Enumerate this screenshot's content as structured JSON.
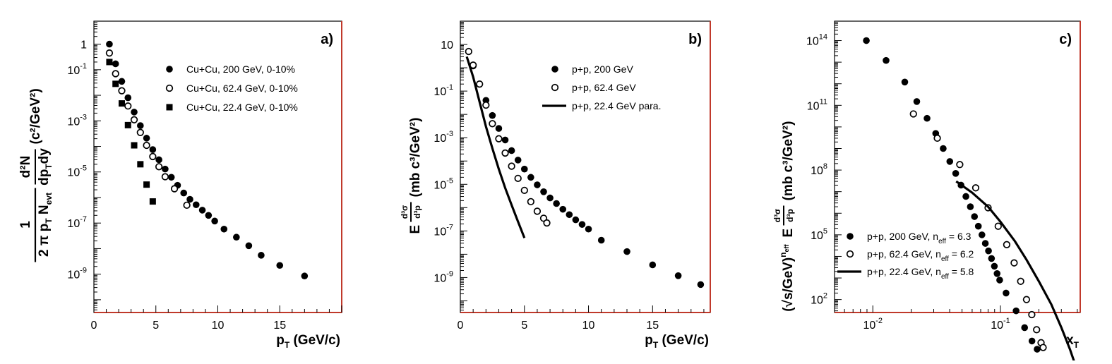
{
  "chart_data": [
    {
      "type": "scatter",
      "panel_label": "a)",
      "xlabel": "p",
      "xlabel_sub": "T",
      "xlabel_unit": " (GeV/c)",
      "ylabel_frac_num": "1",
      "ylabel_frac_den": "2 π p",
      "ylabel_frac_den_sub": "T",
      "ylabel_frac_den2": " N",
      "ylabel_frac_den2_sub": "evt",
      "ylabel_d2n": "d²N",
      "ylabel_den": "dp",
      "ylabel_den_sub": "T",
      "ylabel_den2": "dy",
      "ylabel_unit": "(c²/GeV²)",
      "x_scale": "linear",
      "y_scale": "log",
      "xlim": [
        0,
        20
      ],
      "ylim_exp": [
        -10.5,
        0.9
      ],
      "x_ticks": [
        {
          "v": 0,
          "t": "0"
        },
        {
          "v": 5,
          "t": "5"
        },
        {
          "v": 10,
          "t": "10"
        },
        {
          "v": 15,
          "t": "15"
        }
      ],
      "y_ticks": [
        {
          "v": 0,
          "t": "1"
        },
        {
          "v": -1,
          "t": "10",
          "e": "-1"
        },
        {
          "v": -3,
          "t": "10",
          "e": "-3"
        },
        {
          "v": -5,
          "t": "10",
          "e": "-5"
        },
        {
          "v": -7,
          "t": "10",
          "e": "-7"
        },
        {
          "v": -9,
          "t": "10",
          "e": "-9"
        }
      ],
      "legend_position": "top-right",
      "series": [
        {
          "name": "Cu+Cu, 200 GeV,  0-10%",
          "marker": "filled-circle",
          "x": [
            1.25,
            1.75,
            2.25,
            2.75,
            3.25,
            3.75,
            4.25,
            4.75,
            5.25,
            5.75,
            6.25,
            6.75,
            7.25,
            7.75,
            8.25,
            8.75,
            9.25,
            9.75,
            10.5,
            11.5,
            12.5,
            13.5,
            15,
            17
          ],
          "y": [
            1.0,
            0.17,
            0.035,
            0.008,
            0.0022,
            0.00065,
            0.00021,
            7.5e-05,
            3e-05,
            1.3e-05,
            6.2e-06,
            3e-06,
            1.5e-06,
            8.5e-07,
            5.2e-07,
            3.2e-07,
            2e-07,
            1.2e-07,
            5.8e-08,
            2.8e-08,
            1.3e-08,
            5.5e-09,
            2.2e-09,
            8.5e-10
          ]
        },
        {
          "name": "Cu+Cu, 62.4 GeV,  0-10%",
          "marker": "open-circle",
          "x": [
            1.25,
            1.75,
            2.25,
            2.75,
            3.25,
            3.75,
            4.25,
            4.75,
            5.25,
            5.75,
            6.5,
            7.5
          ],
          "y": [
            0.45,
            0.07,
            0.015,
            0.0038,
            0.0011,
            0.00035,
            0.00011,
            4e-05,
            1.6e-05,
            6.5e-06,
            2.2e-06,
            5e-07
          ]
        },
        {
          "name": "Cu+Cu, 22.4 GeV,  0-10%",
          "marker": "filled-square",
          "x": [
            1.25,
            1.75,
            2.25,
            2.75,
            3.25,
            3.75,
            4.25,
            4.75
          ],
          "y": [
            0.2,
            0.028,
            0.0048,
            0.00068,
            0.00011,
            2e-05,
            3.2e-06,
            7e-07
          ]
        }
      ]
    },
    {
      "type": "scatter",
      "panel_label": "b)",
      "xlabel": "p",
      "xlabel_sub": "T",
      "xlabel_unit": " (GeV/c)",
      "ylabel_e": "E",
      "ylabel_num": "d³σ",
      "ylabel_den": "d³p",
      "ylabel_unit": "(mb c³/GeV²)",
      "x_scale": "linear",
      "y_scale": "log",
      "xlim": [
        0,
        19.5
      ],
      "ylim_exp": [
        -10.5,
        2
      ],
      "x_ticks": [
        {
          "v": 0,
          "t": "0"
        },
        {
          "v": 5,
          "t": "5"
        },
        {
          "v": 10,
          "t": "10"
        },
        {
          "v": 15,
          "t": "15"
        }
      ],
      "y_ticks": [
        {
          "v": 1,
          "t": "10"
        },
        {
          "v": -1,
          "t": "10",
          "e": "-1"
        },
        {
          "v": -3,
          "t": "10",
          "e": "-3"
        },
        {
          "v": -5,
          "t": "10",
          "e": "-5"
        },
        {
          "v": -7,
          "t": "10",
          "e": "-7"
        },
        {
          "v": -9,
          "t": "10",
          "e": "-9"
        }
      ],
      "legend_position": "top-right",
      "series": [
        {
          "name": "p+p, 200 GeV",
          "marker": "filled-circle",
          "x": [
            0.65,
            1.0,
            1.5,
            2.0,
            2.5,
            3.0,
            3.5,
            4.0,
            4.5,
            5.0,
            5.5,
            6.0,
            6.5,
            7.0,
            7.5,
            8.0,
            8.5,
            9.0,
            9.5,
            10.0,
            11.0,
            13.0,
            15.0,
            17.0,
            18.75
          ],
          "y": [
            5,
            1.2,
            0.2,
            0.04,
            0.009,
            0.0025,
            0.0008,
            0.00028,
            0.00011,
            4.5e-05,
            2e-05,
            9.5e-06,
            4.8e-06,
            2.6e-06,
            1.5e-06,
            8.5e-07,
            5e-07,
            3e-07,
            1.9e-07,
            1.2e-07,
            4e-08,
            1.3e-08,
            3.5e-09,
            1.2e-09,
            5e-10
          ]
        },
        {
          "name": "p+p, 62.4 GeV",
          "marker": "open-circle",
          "x": [
            0.65,
            1.0,
            1.5,
            2.0,
            2.5,
            3.0,
            3.5,
            4.0,
            4.5,
            5.0,
            5.5,
            6.0,
            6.5,
            6.75
          ],
          "y": [
            5,
            1.3,
            0.2,
            0.025,
            0.004,
            0.0009,
            0.00022,
            6e-05,
            1.8e-05,
            5.5e-06,
            1.8e-06,
            7e-07,
            3.5e-07,
            2.2e-07
          ]
        },
        {
          "name": "p+p, 22.4 GeV para.",
          "marker": "line",
          "x": [
            0.5,
            1.0,
            1.5,
            2.0,
            2.5,
            3.0,
            3.5,
            4.0,
            4.5,
            5.0
          ],
          "y": [
            3,
            0.4,
            0.035,
            0.003,
            0.00035,
            4.5e-05,
            7e-06,
            1.3e-06,
            2.5e-07,
            5e-08
          ]
        }
      ]
    },
    {
      "type": "scatter",
      "panel_label": "c)",
      "xlabel": "x",
      "xlabel_sub": "T",
      "ylabel_pre": "(√s/GeV)",
      "ylabel_pre_sup": "n",
      "ylabel_pre_sup_sub": "eff",
      "ylabel_e": "E",
      "ylabel_num": "d³σ",
      "ylabel_den": "d³p",
      "ylabel_unit": "(mb c³/GeV²)",
      "x_scale": "log",
      "y_scale": "log",
      "xlim_exp": [
        -2.3,
        -0.375
      ],
      "ylim_exp": [
        1.4,
        14.9
      ],
      "x_ticks": [
        {
          "v": -2,
          "t": "10",
          "e": "-2"
        },
        {
          "v": -1,
          "t": "10",
          "e": "-1"
        }
      ],
      "y_ticks": [
        {
          "v": 14,
          "t": "10",
          "e": "14"
        },
        {
          "v": 11,
          "t": "10",
          "e": "11"
        },
        {
          "v": 8,
          "t": "10",
          "e": "8"
        },
        {
          "v": 5,
          "t": "10",
          "e": "5"
        },
        {
          "v": 2,
          "t": "10",
          "e": "2"
        }
      ],
      "legend_position": "bottom-left",
      "series": [
        {
          "name": "p+p, 200 GeV, n",
          "name_sub": "eff",
          "name_tail": " = 6.3",
          "marker": "filled-circle",
          "x": [
            0.0089,
            0.0127,
            0.0178,
            0.0221,
            0.0266,
            0.0311,
            0.0356,
            0.0401,
            0.0446,
            0.0491,
            0.0536,
            0.0581,
            0.0626,
            0.0671,
            0.0716,
            0.0761,
            0.0806,
            0.0851,
            0.0896,
            0.0941,
            0.0986,
            0.1106,
            0.1326,
            0.1546,
            0.1766,
            0.1938
          ],
          "y": [
            100000000000000.0,
            12000000000000.0,
            1200000000000.0,
            150000000000.0,
            25000000000.0,
            5000000000.0,
            1000000000.0,
            250000000.0,
            70000000.0,
            20000000.0,
            6000000.0,
            2000000.0,
            700000.0,
            250000.0,
            100000.0,
            40000.0,
            18000.0,
            8000.0,
            3500.0,
            1600.0,
            800,
            200,
            30,
            5,
            1.2,
            0.5
          ]
        },
        {
          "name": "p+p, 62.4 GeV, n",
          "name_sub": "eff",
          "name_tail": " = 6.2",
          "marker": "open-circle",
          "x": [
            0.0208,
            0.032,
            0.048,
            0.064,
            0.08,
            0.096,
            0.112,
            0.128,
            0.144,
            0.16,
            0.176,
            0.192,
            0.208,
            0.216
          ],
          "y": [
            40000000000.0,
            3000000000.0,
            180000000.0,
            15000000.0,
            1800000.0,
            250000.0,
            35000.0,
            5000.0,
            700,
            100,
            20,
            4,
            1,
            0.6
          ]
        },
        {
          "name": "p+p, 22.4 GeV, n",
          "name_sub": "eff",
          "name_tail": " = 5.8",
          "marker": "line",
          "x": [
            0.045,
            0.06,
            0.08,
            0.1,
            0.13,
            0.16,
            0.2,
            0.25,
            0.3,
            0.35,
            0.4,
            0.42
          ],
          "y": [
            30000000.0,
            9000000.0,
            2000000.0,
            400000.0,
            50000.0,
            7000.0,
            700.0,
            60,
            5,
            0.5,
            0.05,
            0.025
          ]
        }
      ]
    }
  ]
}
